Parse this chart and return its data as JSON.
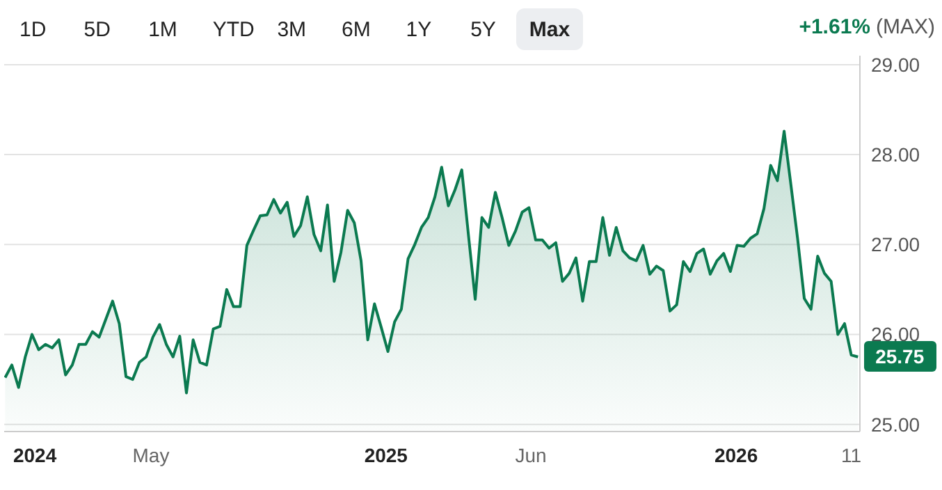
{
  "chart_data": {
    "type": "area",
    "annotations": [
      "1D",
      "5D",
      "1M",
      "YTD",
      "3M",
      "6M",
      "1Y",
      "5Y",
      "Max",
      "+1.61%",
      "(MAX)",
      {
        "text": "25.75",
        "x": "2026-05-08",
        "y": 25.75
      }
    ],
    "x": [
      "2023-12-01",
      "2023-12-08",
      "2023-12-15",
      "2023-12-22",
      "2023-12-29",
      "2024-01-05",
      "2024-01-12",
      "2024-01-19",
      "2024-01-26",
      "2024-02-02",
      "2024-02-09",
      "2024-02-16",
      "2024-02-23",
      "2024-03-01",
      "2024-03-08",
      "2024-03-15",
      "2024-03-22",
      "2024-03-29",
      "2024-04-05",
      "2024-04-12",
      "2024-04-19",
      "2024-04-26",
      "2024-05-03",
      "2024-05-10",
      "2024-05-17",
      "2024-05-24",
      "2024-05-31",
      "2024-06-07",
      "2024-06-14",
      "2024-06-21",
      "2024-06-28",
      "2024-07-05",
      "2024-07-12",
      "2024-07-19",
      "2024-07-26",
      "2024-08-02",
      "2024-08-09",
      "2024-08-16",
      "2024-08-23",
      "2024-08-30",
      "2024-09-06",
      "2024-09-13",
      "2024-09-20",
      "2024-09-27",
      "2024-10-04",
      "2024-10-11",
      "2024-10-18",
      "2024-10-25",
      "2024-11-01",
      "2024-11-08",
      "2024-11-15",
      "2024-11-22",
      "2024-11-29",
      "2024-12-06",
      "2024-12-13",
      "2024-12-20",
      "2024-12-27",
      "2025-01-03",
      "2025-01-10",
      "2025-01-17",
      "2025-01-24",
      "2025-01-31",
      "2025-02-07",
      "2025-02-14",
      "2025-02-21",
      "2025-02-28",
      "2025-03-07",
      "2025-03-14",
      "2025-03-21",
      "2025-03-28",
      "2025-04-04",
      "2025-04-11",
      "2025-04-18",
      "2025-04-25",
      "2025-05-02",
      "2025-05-09",
      "2025-05-16",
      "2025-05-23",
      "2025-05-30",
      "2025-06-06",
      "2025-06-13",
      "2025-06-20",
      "2025-06-27",
      "2025-07-04",
      "2025-07-11",
      "2025-07-18",
      "2025-07-25",
      "2025-08-01",
      "2025-08-08",
      "2025-08-15",
      "2025-08-22",
      "2025-08-29",
      "2025-09-05",
      "2025-09-12",
      "2025-09-19",
      "2025-09-26",
      "2025-10-03",
      "2025-10-10",
      "2025-10-17",
      "2025-10-24",
      "2025-10-31",
      "2025-11-07",
      "2025-11-14",
      "2025-11-21",
      "2025-11-28",
      "2025-12-05",
      "2025-12-12",
      "2025-12-19",
      "2025-12-26",
      "2026-01-02",
      "2026-01-09",
      "2026-01-16",
      "2026-01-23",
      "2026-01-30",
      "2026-02-06",
      "2026-02-13",
      "2026-02-20",
      "2026-02-27",
      "2026-03-06",
      "2026-03-13",
      "2026-03-20",
      "2026-03-27",
      "2026-04-03",
      "2026-04-10",
      "2026-04-17",
      "2026-04-24",
      "2026-05-01",
      "2026-05-08"
    ],
    "series": [
      {
        "color": "#0b7a50",
        "values": [
          25.52,
          25.66,
          25.41,
          25.75,
          26.0,
          25.83,
          25.89,
          25.85,
          25.94,
          25.55,
          25.66,
          25.89,
          25.89,
          26.03,
          25.97,
          26.17,
          26.37,
          26.12,
          25.53,
          25.5,
          25.69,
          25.75,
          25.97,
          26.11,
          25.89,
          25.75,
          25.98,
          25.35,
          25.94,
          25.69,
          25.66,
          26.06,
          26.09,
          26.5,
          26.31,
          26.31,
          26.99,
          27.16,
          27.32,
          27.33,
          27.5,
          27.35,
          27.47,
          27.09,
          27.21,
          27.53,
          27.11,
          26.93,
          27.44,
          26.59,
          26.91,
          27.38,
          27.24,
          26.82,
          25.94,
          26.34,
          26.08,
          25.81,
          26.14,
          26.28,
          26.84,
          27.0,
          27.19,
          27.3,
          27.53,
          27.86,
          27.43,
          27.61,
          27.83,
          27.1,
          26.39,
          27.3,
          27.19,
          27.58,
          27.3,
          26.99,
          27.15,
          27.36,
          27.41,
          27.05,
          27.05,
          26.96,
          27.02,
          26.59,
          26.68,
          26.85,
          26.37,
          26.81,
          26.81,
          27.3,
          26.88,
          27.19,
          26.93,
          26.85,
          26.82,
          26.99,
          26.67,
          26.76,
          26.71,
          26.26,
          26.33,
          26.81,
          26.7,
          26.9,
          26.95,
          26.67,
          26.82,
          26.9,
          26.7,
          26.99,
          26.98,
          27.07,
          27.12,
          27.4,
          27.88,
          27.71,
          28.26,
          27.67,
          27.07,
          26.4,
          26.28,
          26.87,
          26.68,
          26.59,
          26.0,
          26.12,
          25.77,
          25.75
        ]
      }
    ],
    "xlim": [
      "2023-11-30",
      "2026-05-10"
    ],
    "xticks": [
      {
        "value": "2024-01-01",
        "label": "2024"
      },
      {
        "value": "2024-05-01",
        "label": "May"
      },
      {
        "value": "2025-01-01",
        "label": "2025"
      },
      {
        "value": "2025-06-01",
        "label": "Jun"
      },
      {
        "value": "2026-01-01",
        "label": "2026"
      },
      {
        "value": "2026-05-01",
        "label": "11"
      }
    ],
    "ylim": [
      24.92,
      29.1
    ],
    "yticks": [
      {
        "value": 25,
        "label": "25.00"
      },
      {
        "value": 26,
        "label": "26.00"
      },
      {
        "value": 27,
        "label": "27.00"
      },
      {
        "value": 28,
        "label": "28.00"
      },
      {
        "value": 29,
        "label": "29.00"
      }
    ],
    "grid": "y",
    "legend": false
  }
}
